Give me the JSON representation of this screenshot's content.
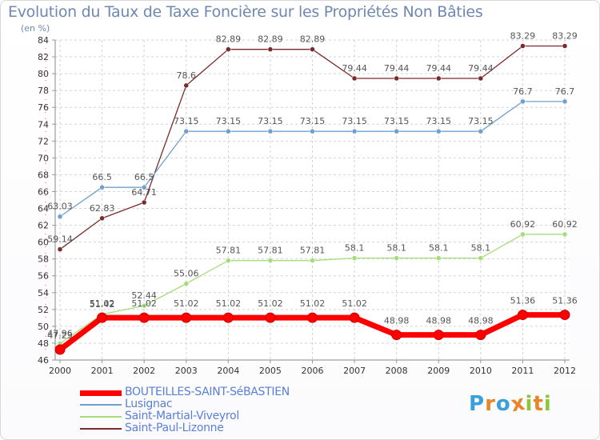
{
  "title": "Evolution du Taux de Taxe Foncière sur les Propriétés Non Bâties",
  "subtitle": "(en %)",
  "logo": {
    "letters": [
      "P",
      "r",
      "o",
      "x",
      "i",
      "t",
      "i"
    ],
    "colors": [
      "#3aa0dc",
      "#e8842a",
      "#3aa0dc",
      "#e8842a",
      "#8cc63f",
      "#e8842a",
      "#8cc63f"
    ]
  },
  "chart_data": {
    "type": "line",
    "title": "Evolution du Taux de Taxe Foncière sur les Propriétés Non Bâties",
    "ylabel": "(en %)",
    "xlabel": "",
    "x": [
      "2000",
      "2001",
      "2002",
      "2003",
      "2004",
      "2005",
      "2006",
      "2007",
      "2008",
      "2009",
      "2010",
      "2011",
      "2012"
    ],
    "ylim": [
      46,
      84
    ],
    "yticks": [
      46,
      48,
      50,
      52,
      54,
      56,
      58,
      60,
      62,
      64,
      66,
      68,
      70,
      72,
      74,
      76,
      78,
      80,
      82,
      84
    ],
    "grid": true,
    "series": [
      {
        "name": "Saint-Paul-Lizonne",
        "color": "#7a2a2a",
        "width": 1.3,
        "values": [
          59.14,
          62.83,
          64.71,
          78.6,
          82.89,
          82.89,
          82.89,
          79.44,
          79.44,
          79.44,
          79.44,
          83.29,
          83.29
        ],
        "labels": [
          "59.14",
          "62.83",
          "64.71",
          "78.6",
          "82.89",
          "82.89",
          "82.89",
          "79.44",
          "79.44",
          "79.44",
          "79.44",
          "83.29",
          "83.29"
        ]
      },
      {
        "name": "Lusignac",
        "color": "#6fa0d0",
        "width": 1.3,
        "values": [
          63.03,
          66.5,
          66.5,
          73.15,
          73.15,
          73.15,
          73.15,
          73.15,
          73.15,
          73.15,
          73.15,
          76.7,
          76.7
        ],
        "labels": [
          "63.03",
          "66.5",
          "66.5",
          "73.15",
          "73.15",
          "73.15",
          "73.15",
          "73.15",
          "73.15",
          "73.15",
          "73.15",
          "76.7",
          "76.7"
        ]
      },
      {
        "name": "Saint-Martial-Viveyrol",
        "color": "#a6dc7a",
        "width": 1.3,
        "values": [
          47.96,
          51.42,
          52.44,
          55.06,
          57.81,
          57.81,
          57.81,
          58.1,
          58.1,
          58.1,
          58.1,
          60.92,
          60.92
        ],
        "labels": [
          "47.96",
          "51.42",
          "52.44",
          "55.06",
          "57.81",
          "57.81",
          "57.81",
          "58.1",
          "58.1",
          "58.1",
          "58.1",
          "60.92",
          "60.92"
        ]
      },
      {
        "name": "BOUTEILLES-SAINT-SéBASTIEN",
        "color": "#ff0000",
        "width": 7,
        "values": [
          47.23,
          51.02,
          51.02,
          51.02,
          51.02,
          51.02,
          51.02,
          51.02,
          48.98,
          48.98,
          48.98,
          51.36,
          51.36
        ],
        "labels": [
          "47.23",
          "51.02",
          "51.02",
          "51.02",
          "51.02",
          "51.02",
          "51.02",
          "51.02",
          "48.98",
          "48.98",
          "48.98",
          "51.36",
          "51.36"
        ]
      }
    ],
    "legend": [
      "BOUTEILLES-SAINT-SéBASTIEN",
      "Lusignac",
      "Saint-Martial-Viveyrol",
      "Saint-Paul-Lizonne"
    ]
  },
  "legend_items": [
    {
      "label": "BOUTEILLES-SAINT-SéBASTIEN",
      "color": "#ff0000",
      "thickness": 7
    },
    {
      "label": "Lusignac",
      "color": "#6fa0d0",
      "thickness": 2
    },
    {
      "label": "Saint-Martial-Viveyrol",
      "color": "#a6dc7a",
      "thickness": 2
    },
    {
      "label": "Saint-Paul-Lizonne",
      "color": "#7a2a2a",
      "thickness": 2
    }
  ]
}
